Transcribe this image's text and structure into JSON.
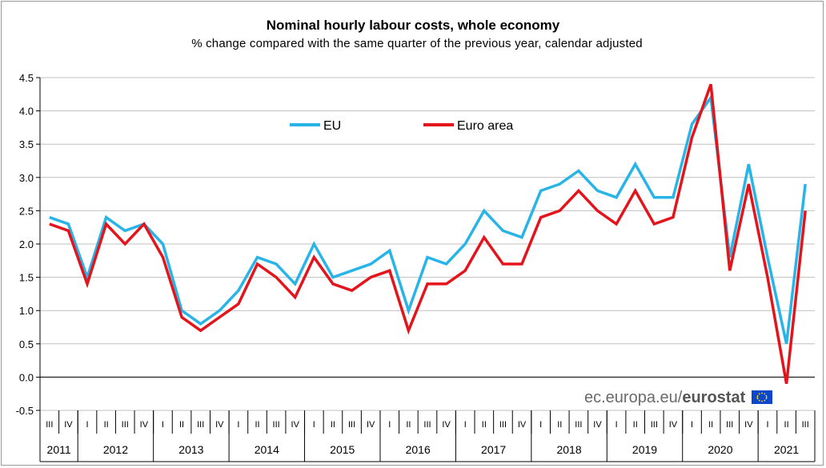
{
  "title": "Nominal hourly labour costs, whole economy",
  "subtitle": "% change compared with the same quarter of the previous  year, calendar adjusted",
  "source": {
    "prefix": "ec.europa.eu/",
    "brand": "eurostat"
  },
  "colors": {
    "eu": "#29B4E8",
    "euro_area": "#E3141B",
    "grid": "#C0C0C0",
    "axis": "#000000"
  },
  "chart_data": {
    "type": "line",
    "title": "Nominal hourly labour costs, whole economy",
    "subtitle": "% change compared with the same quarter of the previous  year, calendar adjusted",
    "ylim": [
      -0.5,
      4.5
    ],
    "yticks": [
      "4.5",
      "4.0",
      "3.5",
      "3.0",
      "2.5",
      "2.0",
      "1.5",
      "1.0",
      "0.5",
      "0.0",
      "-0.5"
    ],
    "grid": true,
    "legend_position": "top-center",
    "x": [
      "2011 III",
      "2011 IV",
      "2012 I",
      "2012 II",
      "2012 III",
      "2012 IV",
      "2013 I",
      "2013 II",
      "2013 III",
      "2013 IV",
      "2014 I",
      "2014 II",
      "2014 III",
      "2014 IV",
      "2015 I",
      "2015 II",
      "2015 III",
      "2015 IV",
      "2016 I",
      "2016 II",
      "2016 III",
      "2016 IV",
      "2017 I",
      "2017 II",
      "2017 III",
      "2017 IV",
      "2018 I",
      "2018 II",
      "2018 III",
      "2018 IV",
      "2019 I",
      "2019 II",
      "2019 III",
      "2019 IV",
      "2020 I",
      "2020 II",
      "2020 III",
      "2020 IV",
      "2021 I",
      "2021 II",
      "2021 III"
    ],
    "quarter_labels": [
      "III",
      "IV",
      "I",
      "II",
      "III",
      "IV",
      "I",
      "II",
      "III",
      "IV",
      "I",
      "II",
      "III",
      "IV",
      "I",
      "II",
      "III",
      "IV",
      "I",
      "II",
      "III",
      "IV",
      "I",
      "II",
      "III",
      "IV",
      "I",
      "II",
      "III",
      "IV",
      "I",
      "II",
      "III",
      "IV",
      "I",
      "II",
      "III",
      "IV",
      "I",
      "II",
      "III"
    ],
    "years": [
      {
        "label": "2011",
        "count": 2
      },
      {
        "label": "2012",
        "count": 4
      },
      {
        "label": "2013",
        "count": 4
      },
      {
        "label": "2014",
        "count": 4
      },
      {
        "label": "2015",
        "count": 4
      },
      {
        "label": "2016",
        "count": 4
      },
      {
        "label": "2017",
        "count": 4
      },
      {
        "label": "2018",
        "count": 4
      },
      {
        "label": "2019",
        "count": 4
      },
      {
        "label": "2020",
        "count": 4
      },
      {
        "label": "2021",
        "count": 3
      }
    ],
    "series": [
      {
        "name": "EU",
        "color": "#29B4E8",
        "values": [
          2.4,
          2.3,
          1.5,
          2.4,
          2.2,
          2.3,
          2.0,
          1.0,
          0.8,
          1.0,
          1.3,
          1.8,
          1.7,
          1.4,
          2.0,
          1.5,
          1.6,
          1.7,
          1.9,
          1.0,
          1.8,
          1.7,
          2.0,
          2.5,
          2.2,
          2.1,
          2.8,
          2.9,
          3.1,
          2.8,
          2.7,
          3.2,
          2.7,
          2.7,
          3.8,
          4.2,
          1.8,
          3.2,
          1.8,
          0.5,
          2.9
        ]
      },
      {
        "name": "Euro area",
        "color": "#E3141B",
        "values": [
          2.3,
          2.2,
          1.4,
          2.3,
          2.0,
          2.3,
          1.8,
          0.9,
          0.7,
          0.9,
          1.1,
          1.7,
          1.5,
          1.2,
          1.8,
          1.4,
          1.3,
          1.5,
          1.6,
          0.7,
          1.4,
          1.4,
          1.6,
          2.1,
          1.7,
          1.7,
          2.4,
          2.5,
          2.8,
          2.5,
          2.3,
          2.8,
          2.3,
          2.4,
          3.6,
          4.4,
          1.6,
          2.9,
          1.5,
          -0.1,
          2.5
        ]
      }
    ]
  }
}
